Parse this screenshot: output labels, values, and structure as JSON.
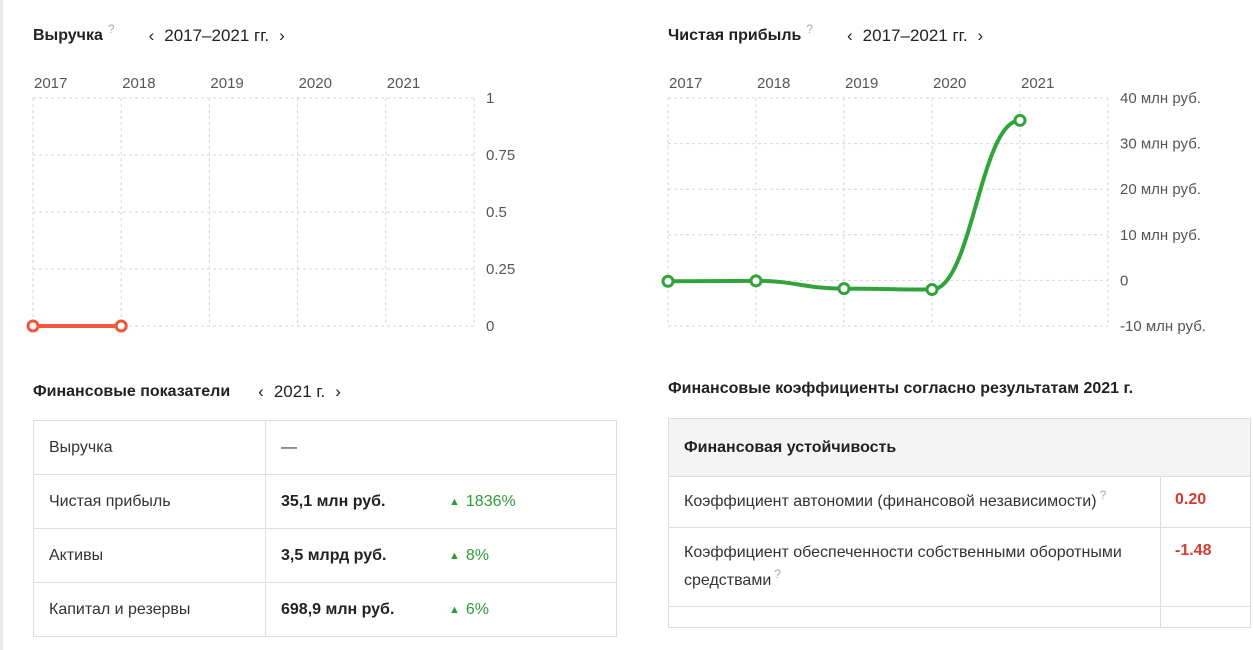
{
  "revenue_block": {
    "title": "Выручка",
    "help": "?",
    "period": "2017–2021 гг.",
    "prev": "‹",
    "next": "›"
  },
  "profit_block": {
    "title": "Чистая прибыль",
    "help": "?",
    "period": "2017–2021 гг.",
    "prev": "‹",
    "next": "›"
  },
  "chart_data": [
    {
      "type": "line",
      "title": "Выручка",
      "x": [
        "2017",
        "2018",
        "2019",
        "2020",
        "2021"
      ],
      "y_ticks": [
        "1",
        "0.75",
        "0.5",
        "0.25",
        "0"
      ],
      "ylim": [
        0,
        1
      ],
      "series": [
        {
          "values": [
            0,
            0,
            null,
            null,
            null
          ],
          "color": "#f2553a"
        }
      ],
      "grid": true,
      "legend": "none"
    },
    {
      "type": "line",
      "title": "Чистая прибыль",
      "x": [
        "2017",
        "2018",
        "2019",
        "2020",
        "2021"
      ],
      "y_ticks": [
        "40 млн руб.",
        "30 млн руб.",
        "20 млн руб.",
        "10 млн руб.",
        "0",
        "-10 млн руб."
      ],
      "ylim": [
        -10,
        40
      ],
      "y_unit": "млн руб.",
      "series": [
        {
          "values": [
            -0.2,
            -0.1,
            -1.8,
            -2.0,
            35.1
          ],
          "color": "#31a33b"
        }
      ],
      "grid": true,
      "legend": "none"
    }
  ],
  "fin_indicators": {
    "title": "Финансовые показатели",
    "period": "2021 г.",
    "prev": "‹",
    "next": "›",
    "rows": [
      {
        "name": "Выручка",
        "value": "—",
        "change": ""
      },
      {
        "name": "Чистая прибыль",
        "value": "35,1 млн руб.",
        "change": "1836%"
      },
      {
        "name": "Активы",
        "value": "3,5 млрд руб.",
        "change": "8%"
      },
      {
        "name": "Капитал и резервы",
        "value": "698,9 млн руб.",
        "change": "6%"
      }
    ],
    "up_symbol": "▲"
  },
  "fin_ratios": {
    "title": "Финансовые коэффициенты согласно результатам 2021 г.",
    "section": "Финансовая устойчивость",
    "rows": [
      {
        "name": "Коэффициент автономии (финансовой независимости)",
        "value": "0.20"
      },
      {
        "name": "Коэффициент обеспеченности собственными оборотными средствами",
        "value": "-1.48"
      }
    ],
    "help": "?"
  },
  "colors": {
    "revenue_line": "#f2553a",
    "profit_line": "#31a33b",
    "positive": "#2e9b3a",
    "negative": "#d43c2f",
    "grid": "#d6d6d6"
  }
}
